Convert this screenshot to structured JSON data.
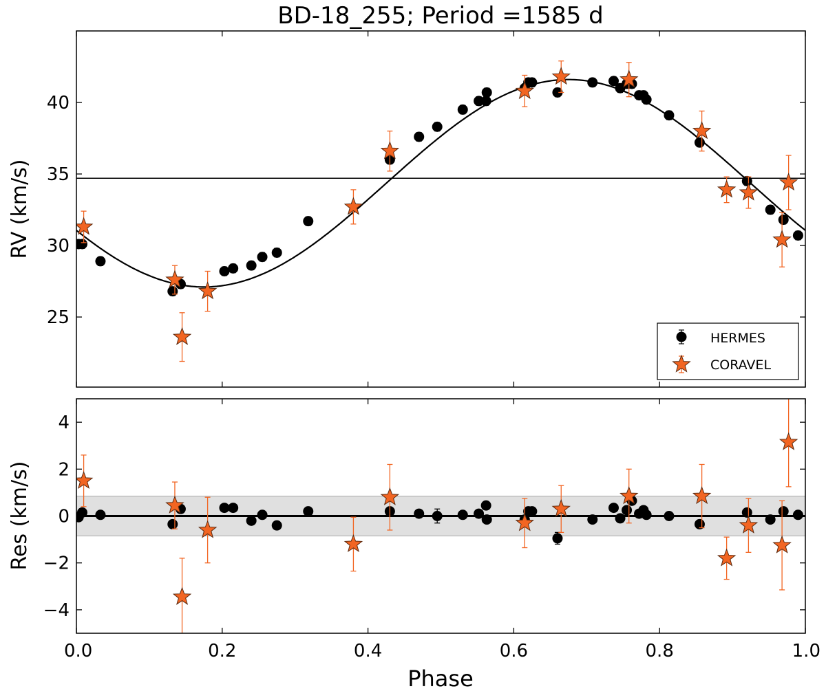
{
  "chart_data": [
    {
      "type": "scatter",
      "title": "BD-18_255; Period =1585 d",
      "xlabel": "",
      "ylabel": "RV (km/s)",
      "xlim": [
        0.0,
        1.0
      ],
      "ylim": [
        20.1,
        45.0
      ],
      "xticks": [
        "0.0",
        "0.2",
        "0.4",
        "0.6",
        "0.8",
        "1.0"
      ],
      "yticks": [
        25,
        30,
        35,
        40
      ],
      "ytick_labels": [
        "25",
        "30",
        "35",
        "40"
      ],
      "systemic_velocity": 34.7,
      "model_curve": {
        "name": "orbit fit",
        "gamma": 34.35,
        "amplitude": 7.25,
        "phase_of_max": 0.675,
        "color": "#000000"
      },
      "legend": {
        "position": "lower right",
        "entries": [
          "HERMES",
          "CORAVEL"
        ]
      },
      "series": [
        {
          "name": "HERMES",
          "marker": "circle",
          "color": "#000000",
          "x": [
            0.003,
            0.008,
            0.033,
            0.132,
            0.143,
            0.203,
            0.215,
            0.24,
            0.255,
            0.275,
            0.318,
            0.43,
            0.47,
            0.495,
            0.53,
            0.552,
            0.562,
            0.563,
            0.615,
            0.62,
            0.625,
            0.66,
            0.708,
            0.737,
            0.746,
            0.755,
            0.762,
            0.772,
            0.778,
            0.782,
            0.813,
            0.855,
            0.92,
            0.952,
            0.97,
            0.99
          ],
          "y": [
            30.1,
            30.1,
            28.9,
            26.8,
            27.3,
            28.2,
            28.4,
            28.6,
            29.2,
            29.5,
            31.7,
            36.0,
            37.6,
            38.3,
            39.5,
            40.1,
            40.1,
            40.7,
            41.0,
            41.4,
            41.4,
            40.7,
            41.4,
            41.5,
            41.0,
            41.3,
            41.3,
            40.5,
            40.5,
            40.2,
            39.1,
            37.2,
            34.5,
            32.5,
            31.8,
            30.7
          ],
          "yerr": [
            0.3,
            0.3,
            0.3,
            0.3,
            0.3,
            0.3,
            0.3,
            0.3,
            0.3,
            0.3,
            0.3,
            0.3,
            0.3,
            0.3,
            0.3,
            0.3,
            0.3,
            0.3,
            0.3,
            0.3,
            0.3,
            0.3,
            0.3,
            0.3,
            0.3,
            0.3,
            0.3,
            0.3,
            0.3,
            0.3,
            0.3,
            0.3,
            0.3,
            0.3,
            0.3,
            0.3
          ]
        },
        {
          "name": "CORAVEL",
          "marker": "star",
          "color": "#f26522",
          "x": [
            0.01,
            0.135,
            0.145,
            0.18,
            0.38,
            0.43,
            0.615,
            0.665,
            0.758,
            0.858,
            0.892,
            0.922,
            0.968,
            0.977
          ],
          "y": [
            31.3,
            27.6,
            23.6,
            26.8,
            32.7,
            36.6,
            40.8,
            41.8,
            41.6,
            38.0,
            33.9,
            33.7,
            30.4,
            34.4
          ],
          "yerr": [
            1.1,
            1.0,
            1.7,
            1.4,
            1.2,
            1.4,
            1.1,
            1.1,
            1.2,
            1.4,
            0.9,
            1.1,
            1.9,
            1.9
          ]
        }
      ]
    },
    {
      "type": "scatter",
      "title": "",
      "xlabel": "Phase",
      "ylabel": "Res (km/s)",
      "xlim": [
        0.0,
        1.0
      ],
      "ylim": [
        -5.0,
        5.0
      ],
      "xticks": [
        "0.0",
        "0.2",
        "0.4",
        "0.6",
        "0.8",
        "1.0"
      ],
      "yticks": [
        -4,
        -2,
        0,
        2,
        4
      ],
      "ytick_labels": [
        "−4",
        "−2",
        "0",
        "2",
        "4"
      ],
      "zero_line": 0,
      "band": {
        "low": -0.85,
        "high": 0.85,
        "color": "#e0e0e0"
      },
      "series": [
        {
          "name": "HERMES",
          "marker": "circle",
          "color": "#000000",
          "x": [
            0.003,
            0.008,
            0.033,
            0.132,
            0.143,
            0.203,
            0.215,
            0.24,
            0.255,
            0.275,
            0.318,
            0.43,
            0.47,
            0.495,
            0.53,
            0.552,
            0.562,
            0.563,
            0.615,
            0.62,
            0.625,
            0.66,
            0.708,
            0.737,
            0.746,
            0.755,
            0.762,
            0.772,
            0.778,
            0.782,
            0.813,
            0.855,
            0.92,
            0.952,
            0.97,
            0.99
          ],
          "y": [
            -0.05,
            0.15,
            0.05,
            -0.35,
            0.3,
            0.35,
            0.35,
            -0.2,
            0.05,
            -0.4,
            0.2,
            0.2,
            0.1,
            0.0,
            0.05,
            0.1,
            0.45,
            -0.15,
            -0.15,
            0.2,
            0.2,
            -0.95,
            -0.15,
            0.35,
            -0.1,
            0.25,
            0.65,
            0.1,
            0.25,
            0.05,
            0.0,
            -0.35,
            0.15,
            -0.15,
            0.2,
            0.05
          ],
          "yerr": [
            0.15,
            0.15,
            0.15,
            0.15,
            0.15,
            0.15,
            0.15,
            0.15,
            0.15,
            0.15,
            0.15,
            0.15,
            0.15,
            0.3,
            0.15,
            0.15,
            0.15,
            0.15,
            0.15,
            0.15,
            0.15,
            0.25,
            0.15,
            0.15,
            0.15,
            0.15,
            0.15,
            0.15,
            0.15,
            0.15,
            0.15,
            0.15,
            0.15,
            0.15,
            0.15,
            0.15
          ]
        },
        {
          "name": "CORAVEL",
          "marker": "star",
          "color": "#f26522",
          "x": [
            0.01,
            0.135,
            0.145,
            0.18,
            0.38,
            0.43,
            0.615,
            0.665,
            0.758,
            0.858,
            0.892,
            0.922,
            0.968,
            0.977
          ],
          "y": [
            1.5,
            0.45,
            -3.45,
            -0.6,
            -1.2,
            0.8,
            -0.3,
            0.3,
            0.85,
            0.85,
            -1.8,
            -0.4,
            -1.25,
            3.15
          ],
          "yerr": [
            1.1,
            1.0,
            1.65,
            1.4,
            1.15,
            1.4,
            1.05,
            1.0,
            1.15,
            1.35,
            0.9,
            1.15,
            1.9,
            1.9
          ]
        }
      ]
    }
  ]
}
